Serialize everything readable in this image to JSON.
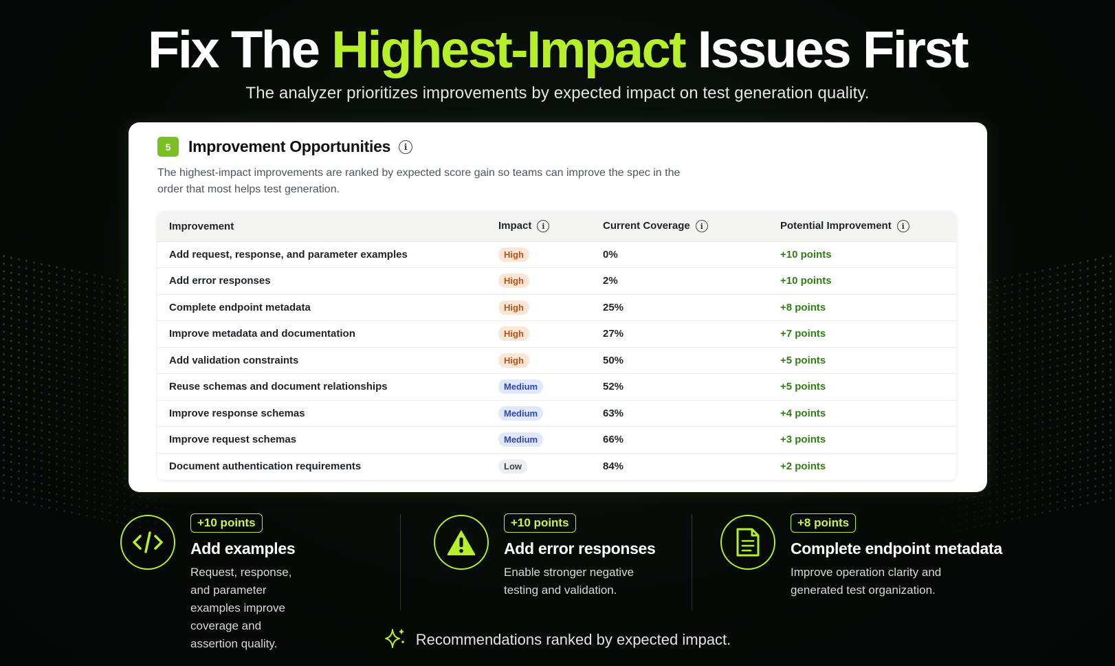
{
  "hero": {
    "title_pre": "Fix The ",
    "title_accent": "Highest-Impact",
    "title_post": " Issues First",
    "subtitle": "The analyzer prioritizes improvements by expected impact on test generation quality."
  },
  "card": {
    "number": "5",
    "title": "Improvement Opportunities",
    "info_glyph": "i",
    "description": "The highest-impact improvements are ranked by expected score gain so teams can improve the spec in the order that most helps test generation."
  },
  "table": {
    "headers": {
      "improvement": "Improvement",
      "impact": "Impact",
      "coverage": "Current Coverage",
      "potential": "Potential Improvement"
    },
    "rows": [
      {
        "improvement": "Add request, response, and parameter examples",
        "impact": "High",
        "coverage": "0%",
        "potential": "+10 points"
      },
      {
        "improvement": "Add error responses",
        "impact": "High",
        "coverage": "2%",
        "potential": "+10 points"
      },
      {
        "improvement": "Complete endpoint metadata",
        "impact": "High",
        "coverage": "25%",
        "potential": "+8 points"
      },
      {
        "improvement": "Improve metadata and documentation",
        "impact": "High",
        "coverage": "27%",
        "potential": "+7 points"
      },
      {
        "improvement": "Add validation constraints",
        "impact": "High",
        "coverage": "50%",
        "potential": "+5 points"
      },
      {
        "improvement": "Reuse schemas and document relationships",
        "impact": "Medium",
        "coverage": "52%",
        "potential": "+5 points"
      },
      {
        "improvement": "Improve response schemas",
        "impact": "Medium",
        "coverage": "63%",
        "potential": "+4 points"
      },
      {
        "improvement": "Improve request schemas",
        "impact": "Medium",
        "coverage": "66%",
        "potential": "+3 points"
      },
      {
        "improvement": "Document authentication requirements",
        "impact": "Low",
        "coverage": "84%",
        "potential": "+2 points"
      }
    ]
  },
  "features": [
    {
      "icon": "code-icon",
      "points": "+10 points",
      "title": "Add examples",
      "desc_lines": [
        "Request, response, and parameter",
        "examples improve coverage and",
        "assertion quality."
      ]
    },
    {
      "icon": "warning-icon",
      "points": "+10 points",
      "title": "Add error responses",
      "desc_lines": [
        "Enable stronger negative",
        "testing and validation."
      ]
    },
    {
      "icon": "document-icon",
      "points": "+8 points",
      "title": "Complete endpoint metadata",
      "desc_lines": [
        "Improve operation clarity and",
        "generated test organization."
      ]
    }
  ],
  "footer": {
    "icon": "sparkles-icon",
    "text": "Recommendations ranked by expected impact."
  },
  "colors": {
    "accent": "#b6f02b",
    "badge_green": "#7bbf24",
    "points_green": "#2f7d14",
    "high_bg": "#fde6d6",
    "medium_bg": "#e2e8fb",
    "low_bg": "#eceef0"
  }
}
